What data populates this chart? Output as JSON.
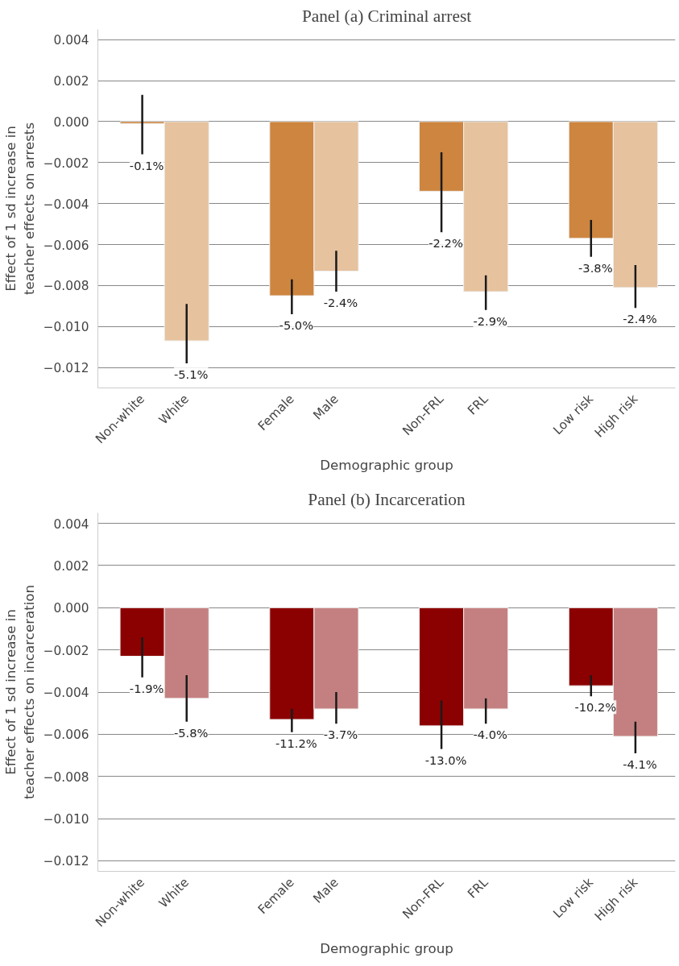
{
  "chart_data": [
    {
      "type": "bar",
      "title": "Panel (a) Criminal arrest",
      "xlabel": "Demographic group",
      "ylabel": "Effect of 1 sd increase in\nteacher effects on arrests",
      "categories": [
        "Non-white",
        "White",
        "Female",
        "Male",
        "Non-FRL",
        "FRL",
        "Low risk",
        "High risk"
      ],
      "values": [
        -0.0001,
        -0.0107,
        -0.0085,
        -0.0073,
        -0.0034,
        -0.0083,
        -0.0057,
        -0.0081
      ],
      "colors": [
        "#cd853f",
        "#e6c29e",
        "#cd853f",
        "#e6c29e",
        "#cd853f",
        "#e6c29e",
        "#cd853f",
        "#e6c29e"
      ],
      "errors": [
        [
          -0.0016,
          0.0013
        ],
        [
          -0.0118,
          -0.0089
        ],
        [
          -0.0094,
          -0.0077
        ],
        [
          -0.0083,
          -0.0063
        ],
        [
          -0.0054,
          -0.0015
        ],
        [
          -0.0092,
          -0.0075
        ],
        [
          -0.0066,
          -0.0048
        ],
        [
          -0.0091,
          -0.007
        ]
      ],
      "annotations": [
        {
          "text": "-0.1%",
          "x": "Non-white",
          "y": -0.0016
        },
        {
          "text": "-5.1%",
          "x": "White",
          "y": -0.0118
        },
        {
          "text": "-5.0%",
          "x": "Female",
          "y": -0.0094
        },
        {
          "text": "-2.4%",
          "x": "Male",
          "y": -0.0083
        },
        {
          "text": "-2.2%",
          "x": "Non-FRL",
          "y": -0.0054
        },
        {
          "text": "-2.9%",
          "x": "FRL",
          "y": -0.0092
        },
        {
          "text": "-3.8%",
          "x": "Low risk",
          "y": -0.0066
        },
        {
          "text": "-2.4%",
          "x": "High risk",
          "y": -0.0091
        }
      ],
      "ylim": [
        -0.013,
        0.0045
      ],
      "yticks": [
        {
          "value": 0.004,
          "label": "0.004"
        },
        {
          "value": 0.002,
          "label": "0.002"
        },
        {
          "value": 0,
          "label": "0.000"
        },
        {
          "value": -0.002,
          "label": "−0.002"
        },
        {
          "value": -0.004,
          "label": "−0.004"
        },
        {
          "value": -0.006,
          "label": "−0.006"
        },
        {
          "value": -0.008,
          "label": "−0.008"
        },
        {
          "value": -0.01,
          "label": "−0.010"
        },
        {
          "value": -0.012,
          "label": "−0.012"
        }
      ],
      "grid": "y"
    },
    {
      "type": "bar",
      "title": "Panel (b) Incarceration",
      "xlabel": "Demographic group",
      "ylabel": "Effect of 1 sd increase in\nteacher effects on incarceration",
      "categories": [
        "Non-white",
        "White",
        "Female",
        "Male",
        "Non-FRL",
        "FRL",
        "Low risk",
        "High risk"
      ],
      "values": [
        -0.0023,
        -0.0043,
        -0.0053,
        -0.0048,
        -0.0056,
        -0.0048,
        -0.0037,
        -0.0061
      ],
      "colors": [
        "#8b0000",
        "#c48080",
        "#8b0000",
        "#c48080",
        "#8b0000",
        "#c48080",
        "#8b0000",
        "#c48080"
      ],
      "errors": [
        [
          -0.0033,
          -0.0014
        ],
        [
          -0.0054,
          -0.0032
        ],
        [
          -0.0059,
          -0.0048
        ],
        [
          -0.0055,
          -0.004
        ],
        [
          -0.0067,
          -0.0044
        ],
        [
          -0.0055,
          -0.0043
        ],
        [
          -0.0042,
          -0.0032
        ],
        [
          -0.0069,
          -0.0054
        ]
      ],
      "annotations": [
        {
          "text": "-1.9%",
          "x": "Non-white",
          "y": -0.0033
        },
        {
          "text": "-5.8%",
          "x": "White",
          "y": -0.0054
        },
        {
          "text": "-11.2%",
          "x": "Female",
          "y": -0.0059
        },
        {
          "text": "-3.7%",
          "x": "Male",
          "y": -0.0055
        },
        {
          "text": "-13.0%",
          "x": "Non-FRL",
          "y": -0.0067
        },
        {
          "text": "-4.0%",
          "x": "FRL",
          "y": -0.0055
        },
        {
          "text": "-10.2%",
          "x": "Low risk",
          "y": -0.0042
        },
        {
          "text": "-4.1%",
          "x": "High risk",
          "y": -0.0069
        }
      ],
      "ylim": [
        -0.0125,
        0.0045
      ],
      "yticks": [
        {
          "value": 0.004,
          "label": "0.004"
        },
        {
          "value": 0.002,
          "label": "0.002"
        },
        {
          "value": 0,
          "label": "0.000"
        },
        {
          "value": -0.002,
          "label": "−0.002"
        },
        {
          "value": -0.004,
          "label": "−0.004"
        },
        {
          "value": -0.006,
          "label": "−0.006"
        },
        {
          "value": -0.008,
          "label": "−0.008"
        },
        {
          "value": -0.01,
          "label": "−0.010"
        },
        {
          "value": -0.012,
          "label": "−0.012"
        }
      ],
      "grid": "y"
    }
  ]
}
